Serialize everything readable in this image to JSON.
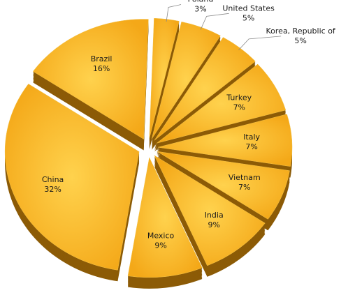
{
  "chart_data": {
    "type": "pie",
    "categories": [
      "Poland",
      "United States",
      "Korea, Republic of",
      "Turkey",
      "Italy",
      "Vietnam",
      "India",
      "Mexico",
      "China",
      "Brazil"
    ],
    "values": [
      3,
      5,
      5,
      7,
      7,
      7,
      9,
      9,
      32,
      16
    ],
    "value_labels": [
      "3%",
      "5%",
      "5%",
      "7%",
      "7%",
      "7%",
      "9%",
      "9%",
      "32%",
      "16%"
    ],
    "color": "#f7b12a"
  }
}
